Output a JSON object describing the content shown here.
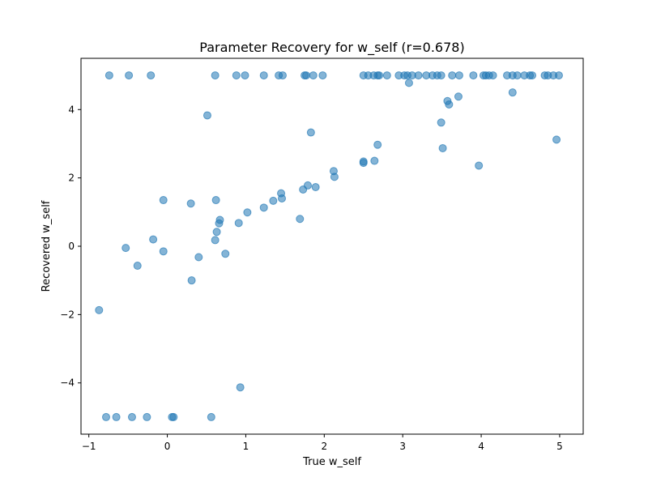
{
  "chart_data": {
    "type": "scatter",
    "title": "Parameter Recovery for w_self (r=0.678)",
    "xlabel": "True w_self",
    "ylabel": "Recovered w_self",
    "xlim": [
      -1.1,
      5.3
    ],
    "ylim": [
      -5.5,
      5.5
    ],
    "xticks": [
      -1,
      0,
      1,
      2,
      3,
      4,
      5
    ],
    "yticks": [
      -4,
      -2,
      0,
      2,
      4
    ],
    "grid": false,
    "marker_color": "#1f77b4",
    "marker_alpha": 0.55,
    "x": [
      -0.74,
      -0.49,
      -0.21,
      0.61,
      0.88,
      0.99,
      1.23,
      1.42,
      1.47,
      1.75,
      1.77,
      1.86,
      1.98,
      2.5,
      2.56,
      2.63,
      2.68,
      2.7,
      2.8,
      2.95,
      3.02,
      3.06,
      3.12,
      3.2,
      3.3,
      3.38,
      3.44,
      3.49,
      3.63,
      3.72,
      3.9,
      4.03,
      4.06,
      4.1,
      4.15,
      4.33,
      4.4,
      4.46,
      4.55,
      4.62,
      4.65,
      4.81,
      4.85,
      4.92,
      4.99,
      3.08,
      4.4,
      3.57,
      3.71,
      3.59,
      0.51,
      1.83,
      3.49,
      3.51,
      2.68,
      4.96,
      3.97,
      2.5,
      2.5,
      2.64,
      2.12,
      2.13,
      1.79,
      1.73,
      1.89,
      1.45,
      1.46,
      1.35,
      1.23,
      1.02,
      0.91,
      1.69,
      0.67,
      0.66,
      0.63,
      0.61,
      0.62,
      0.3,
      -0.05,
      0.74,
      0.4,
      -0.18,
      -0.05,
      -0.53,
      -0.38,
      0.31,
      -0.87,
      0.93,
      -0.78,
      -0.65,
      -0.45,
      -0.26,
      0.06,
      0.08,
      0.56
    ],
    "y": [
      5.0,
      5.0,
      5.0,
      5.0,
      5.0,
      5.0,
      5.0,
      5.0,
      5.0,
      5.0,
      5.0,
      5.0,
      5.0,
      5.0,
      5.0,
      5.0,
      5.0,
      5.0,
      5.0,
      5.0,
      5.0,
      5.0,
      5.0,
      5.0,
      5.0,
      5.0,
      5.0,
      5.0,
      5.0,
      5.0,
      5.0,
      5.0,
      5.0,
      5.0,
      5.0,
      5.0,
      5.0,
      5.0,
      5.0,
      5.0,
      5.0,
      5.0,
      5.0,
      5.0,
      5.0,
      4.78,
      4.5,
      4.25,
      4.38,
      4.15,
      3.83,
      3.33,
      3.62,
      2.87,
      2.97,
      3.12,
      2.36,
      2.48,
      2.44,
      2.5,
      2.2,
      2.03,
      1.78,
      1.66,
      1.73,
      1.55,
      1.4,
      1.33,
      1.13,
      0.99,
      0.68,
      0.8,
      0.77,
      0.67,
      0.42,
      0.18,
      1.35,
      1.25,
      1.35,
      -0.22,
      -0.32,
      0.2,
      -0.15,
      -0.05,
      -0.57,
      -1.0,
      -1.87,
      -4.13,
      -5.0,
      -5.0,
      -5.0,
      -5.0,
      -5.0,
      -5.0,
      -5.0
    ]
  }
}
